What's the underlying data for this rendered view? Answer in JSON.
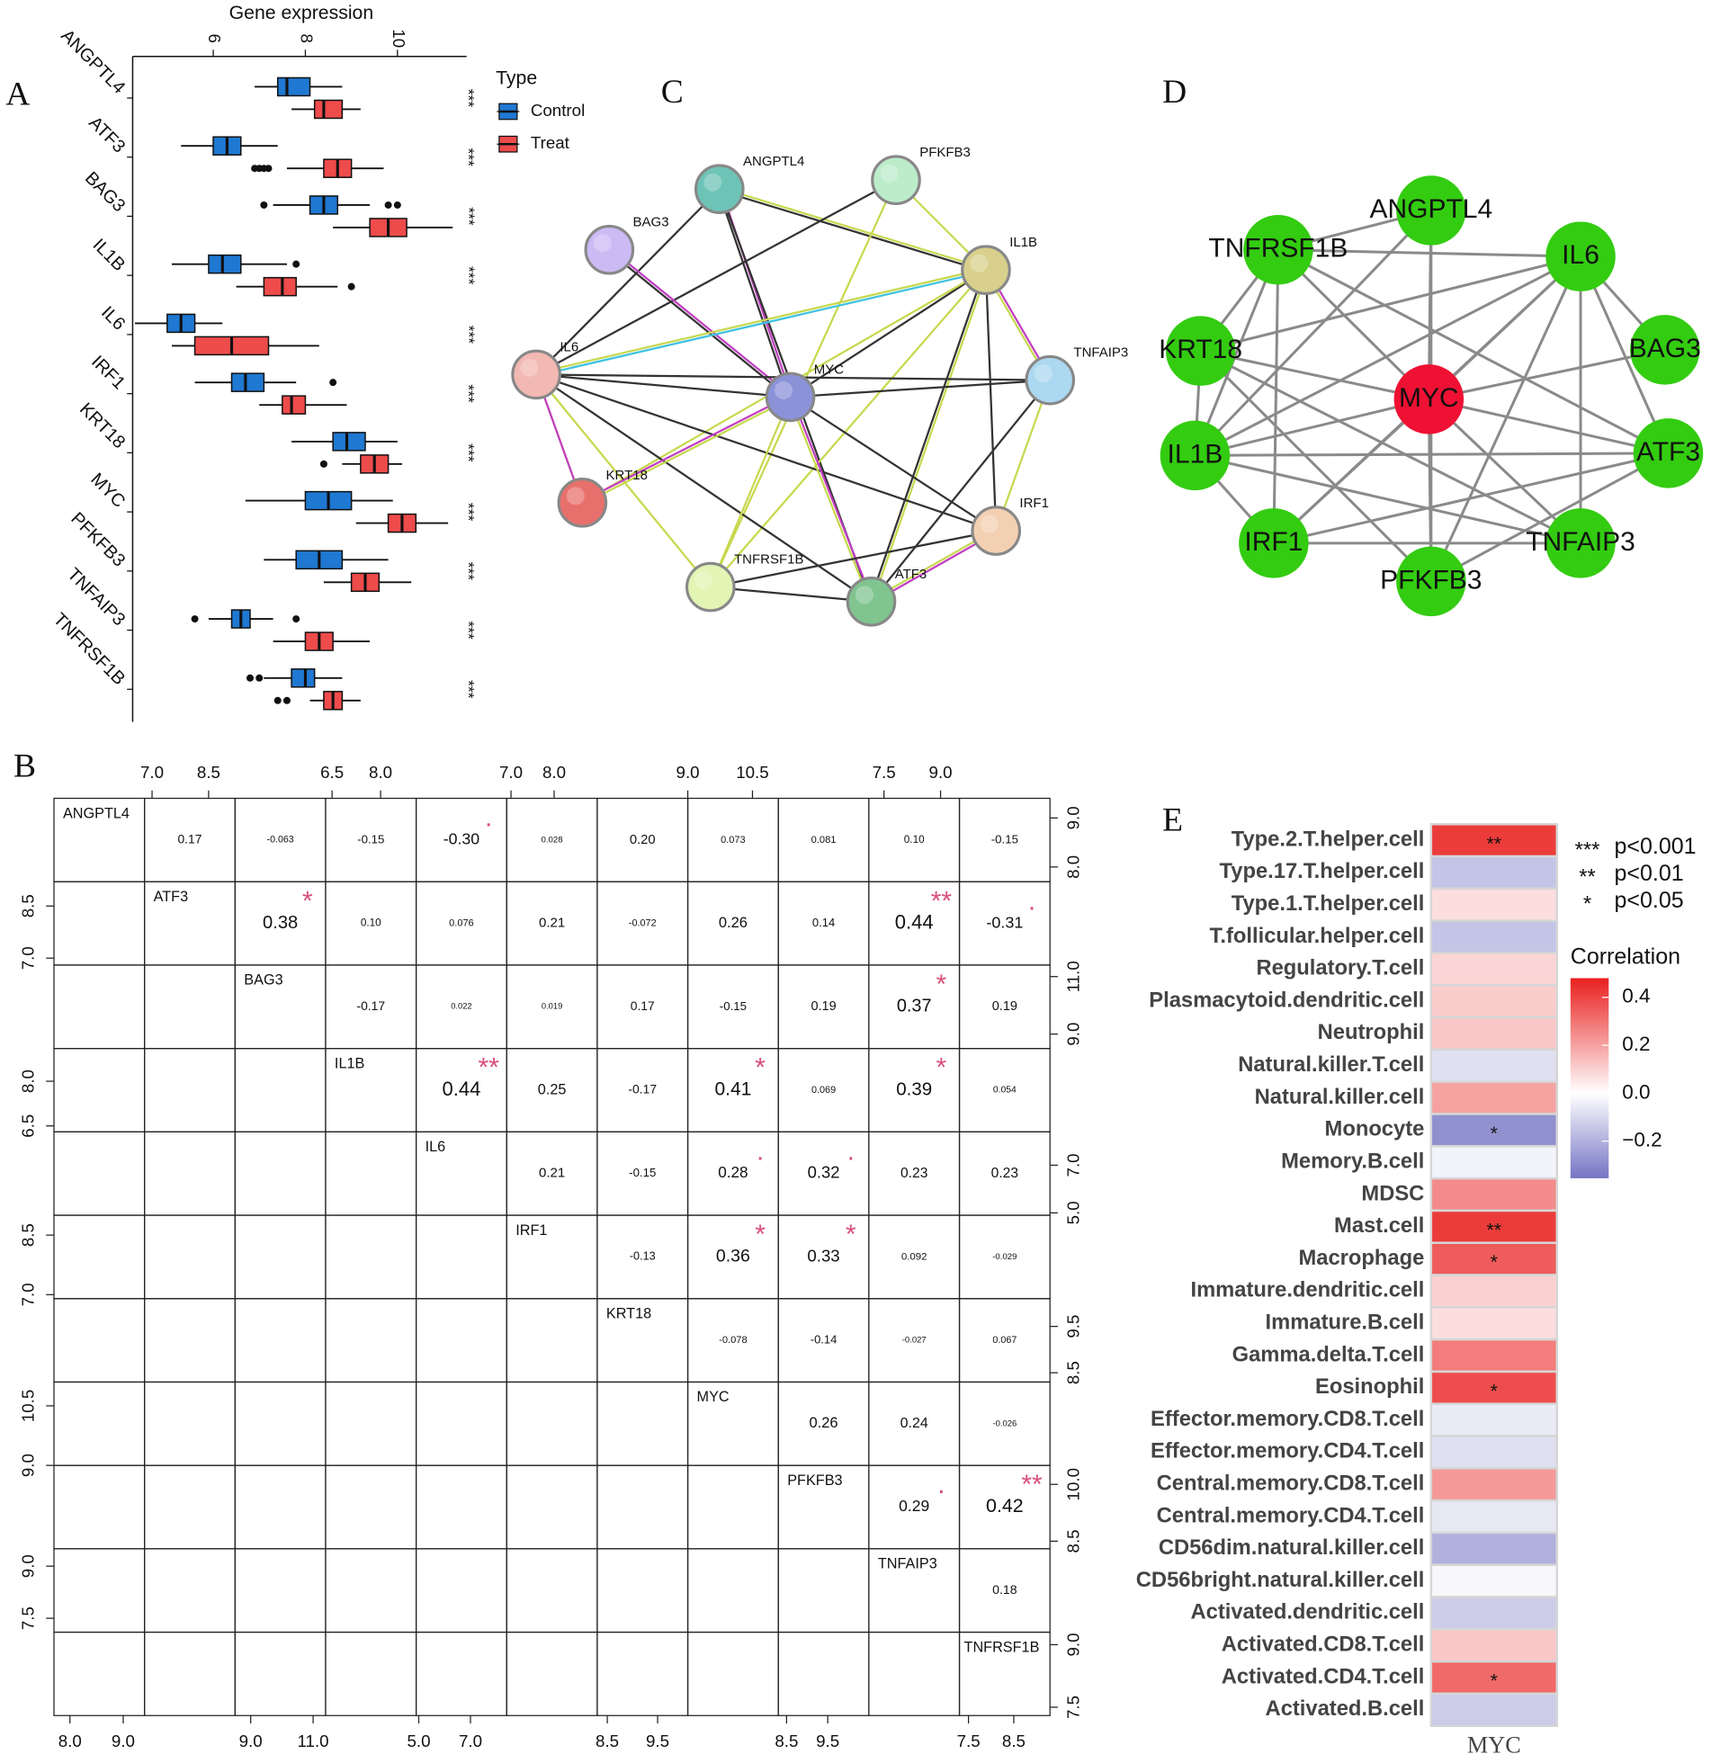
{
  "chart_data": [
    {
      "type": "box",
      "panel_label": "A",
      "title": "Gene expression",
      "categories": [
        "ANGPTL4",
        "ATF3",
        "BAG3",
        "IL1B",
        "IL6",
        "IRF1",
        "KRT18",
        "MYC",
        "PFKFB3",
        "TNFAIP3",
        "TNFRSF1B"
      ],
      "xlim": [
        4.25,
        11.5
      ],
      "xticks": [
        6,
        8,
        10
      ],
      "legend_title": "Type",
      "series": [
        {
          "name": "Control",
          "color": "#1f78d1",
          "q1": [
            7.4,
            6.0,
            8.1,
            5.9,
            5.0,
            6.4,
            8.6,
            8.0,
            7.8,
            6.4,
            7.7
          ],
          "median": [
            7.6,
            6.3,
            8.4,
            6.2,
            5.3,
            6.7,
            8.9,
            8.5,
            8.3,
            6.6,
            8.0
          ],
          "q3": [
            8.1,
            6.6,
            8.7,
            6.6,
            5.6,
            7.1,
            9.3,
            9.0,
            8.8,
            6.8,
            8.2
          ],
          "whisker_low": [
            6.9,
            5.3,
            7.3,
            5.1,
            4.3,
            5.6,
            7.7,
            6.7,
            7.1,
            5.9,
            7.1
          ],
          "whisker_high": [
            8.8,
            7.4,
            9.4,
            7.6,
            6.2,
            7.8,
            10.0,
            9.9,
            9.8,
            7.3,
            8.8
          ],
          "outliers": [
            [],
            [],
            [
              7.1,
              9.8,
              10.0
            ],
            [
              7.8
            ],
            [],
            [
              8.6
            ],
            [],
            [],
            [],
            [
              5.6,
              7.8
            ],
            [
              6.8,
              7.0
            ]
          ]
        },
        {
          "name": "Treat",
          "color": "#ee4b4b",
          "q1": [
            8.2,
            8.4,
            9.4,
            7.1,
            5.6,
            7.5,
            9.2,
            9.8,
            9.0,
            8.0,
            8.4
          ],
          "median": [
            8.4,
            8.7,
            9.8,
            7.5,
            6.4,
            7.7,
            9.5,
            10.1,
            9.3,
            8.3,
            8.6
          ],
          "q3": [
            8.8,
            9.0,
            10.2,
            7.8,
            7.2,
            8.0,
            9.8,
            10.4,
            9.6,
            8.6,
            8.8
          ],
          "whisker_low": [
            7.7,
            7.6,
            8.6,
            6.5,
            5.1,
            7.0,
            8.8,
            9.1,
            8.4,
            7.3,
            8.1
          ],
          "whisker_high": [
            9.2,
            9.7,
            11.2,
            8.7,
            8.3,
            8.9,
            10.1,
            11.1,
            10.3,
            9.4,
            9.2
          ],
          "outliers": [
            [],
            [
              6.9,
              7.0,
              7.1,
              7.2
            ],
            [],
            [
              9.0
            ],
            [],
            [],
            [
              8.4
            ],
            [],
            [],
            [],
            [
              7.4,
              7.6
            ]
          ]
        }
      ],
      "annotations": [
        "***",
        "***",
        "***",
        "***",
        "***",
        "***",
        "***",
        "***",
        "***",
        "***",
        "***"
      ]
    },
    {
      "type": "pairs",
      "panel_label": "B",
      "variables": [
        "ANGPTL4",
        "ATF3",
        "BAG3",
        "IL1B",
        "IL6",
        "IRF1",
        "KRT18",
        "MYC",
        "PFKFB3",
        "TNFAIP3",
        "TNFRSF1B"
      ],
      "ranges": [
        [
          7.7,
          9.4
        ],
        [
          6.8,
          9.2
        ],
        [
          8.5,
          11.4
        ],
        [
          6.3,
          9.1
        ],
        [
          4.9,
          8.4
        ],
        [
          6.9,
          9.0
        ],
        [
          8.3,
          10.1
        ],
        [
          9.0,
          11.1
        ],
        [
          8.3,
          10.5
        ],
        [
          7.1,
          9.5
        ],
        [
          7.3,
          9.3
        ]
      ],
      "col_ticks": [
        [
          {
            "value": 8,
            "label": "8.0"
          },
          {
            "value": 9,
            "label": "9.0"
          }
        ],
        [
          {
            "value": 7,
            "label": "7.0"
          },
          8.5
        ],
        [
          {
            "value": 9,
            "label": "9.0"
          },
          {
            "value": 11,
            "label": "11.0"
          }
        ],
        [
          6.5,
          {
            "value": 8,
            "label": "8.0"
          }
        ],
        [
          {
            "value": 5,
            "label": "5.0"
          },
          {
            "value": 7,
            "label": "7.0"
          }
        ],
        [
          {
            "value": 7,
            "label": "7.0"
          },
          {
            "value": 8,
            "label": "8.0"
          }
        ],
        [
          8.5,
          9.5
        ],
        [
          {
            "value": 9,
            "label": "9.0"
          },
          10.5
        ],
        [
          8.5,
          9.5
        ],
        [
          7.5,
          {
            "value": 9,
            "label": "9.0"
          }
        ],
        [
          7.5,
          8.5
        ]
      ],
      "row_ticks": [
        [
          {
            "value": 8,
            "label": "8.0"
          },
          {
            "value": 9,
            "label": "9.0"
          }
        ],
        [
          {
            "value": 7,
            "label": "7.0"
          },
          8.5
        ],
        [
          {
            "value": 9,
            "label": "9.0"
          },
          {
            "value": 11,
            "label": "11.0"
          }
        ],
        [
          6.5,
          {
            "value": 8,
            "label": "8.0"
          }
        ],
        [
          {
            "value": 5,
            "label": "5.0"
          },
          {
            "value": 7,
            "label": "7.0"
          }
        ],
        [
          {
            "value": 7,
            "label": "7.0"
          },
          8.5
        ],
        [
          8.5,
          9.5
        ],
        [
          {
            "value": 9,
            "label": "9.0"
          },
          10.5
        ],
        [
          8.5,
          {
            "value": 10,
            "label": "10.0"
          }
        ],
        [
          7.5,
          {
            "value": 9,
            "label": "9.0"
          }
        ],
        [
          7.5,
          {
            "value": 9,
            "label": "9.0"
          }
        ]
      ],
      "correlations": [
        [
          null,
          0.17,
          -0.063,
          -0.15,
          -0.3,
          0.028,
          0.2,
          0.073,
          0.081,
          0.1,
          -0.15
        ],
        [
          null,
          null,
          0.38,
          0.1,
          0.076,
          0.21,
          -0.072,
          0.26,
          0.14,
          0.44,
          -0.31
        ],
        [
          null,
          null,
          null,
          -0.17,
          0.022,
          0.019,
          0.17,
          -0.15,
          0.19,
          0.37,
          0.19
        ],
        [
          null,
          null,
          null,
          null,
          0.44,
          0.25,
          -0.17,
          0.41,
          0.069,
          0.39,
          0.054
        ],
        [
          null,
          null,
          null,
          null,
          null,
          0.21,
          -0.15,
          0.28,
          0.32,
          0.23,
          0.23
        ],
        [
          null,
          null,
          null,
          null,
          null,
          null,
          -0.13,
          0.36,
          0.33,
          0.092,
          -0.029
        ],
        [
          null,
          null,
          null,
          null,
          null,
          null,
          null,
          -0.078,
          -0.14,
          -0.027,
          0.067
        ],
        [
          null,
          null,
          null,
          null,
          null,
          null,
          null,
          null,
          0.26,
          0.24,
          -0.026
        ],
        [
          null,
          null,
          null,
          null,
          null,
          null,
          null,
          null,
          null,
          0.29,
          0.42
        ],
        [
          null,
          null,
          null,
          null,
          null,
          null,
          null,
          null,
          null,
          null,
          0.18
        ],
        [
          null,
          null,
          null,
          null,
          null,
          null,
          null,
          null,
          null,
          null,
          null
        ]
      ],
      "correlation_labels": [
        [
          null,
          "0.17",
          "-0.063",
          "-0.15",
          "-0.30",
          "0.028",
          "0.20",
          "0.073",
          "0.081",
          "0.10",
          "-0.15"
        ],
        [
          null,
          null,
          "0.38",
          "0.10",
          "0.076",
          "0.21",
          "-0.072",
          "0.26",
          "0.14",
          "0.44",
          "-0.31"
        ],
        [
          null,
          null,
          null,
          "-0.17",
          "0.022",
          "0.019",
          "0.17",
          "-0.15",
          "0.19",
          "0.37",
          "0.19"
        ],
        [
          null,
          null,
          null,
          null,
          "0.44",
          "0.25",
          "-0.17",
          "0.41",
          "0.069",
          "0.39",
          "0.054"
        ],
        [
          null,
          null,
          null,
          null,
          null,
          "0.21",
          "-0.15",
          "0.28",
          "0.32",
          "0.23",
          "0.23"
        ],
        [
          null,
          null,
          null,
          null,
          null,
          null,
          "-0.13",
          "0.36",
          "0.33",
          "0.092",
          "-0.029"
        ],
        [
          null,
          null,
          null,
          null,
          null,
          null,
          null,
          "-0.078",
          "-0.14",
          "-0.027",
          "0.067"
        ],
        [
          null,
          null,
          null,
          null,
          null,
          null,
          null,
          null,
          "0.26",
          "0.24",
          "-0.026"
        ],
        [
          null,
          null,
          null,
          null,
          null,
          null,
          null,
          null,
          null,
          "0.29",
          "0.42"
        ],
        [
          null,
          null,
          null,
          null,
          null,
          null,
          null,
          null,
          null,
          null,
          "0.18"
        ],
        [
          null,
          null,
          null,
          null,
          null,
          null,
          null,
          null,
          null,
          null,
          null
        ]
      ],
      "significance": [
        [
          null,
          null,
          null,
          null,
          ".",
          null,
          null,
          null,
          null,
          null,
          null
        ],
        [
          null,
          null,
          "*",
          null,
          null,
          null,
          null,
          null,
          null,
          "**",
          "."
        ],
        [
          null,
          null,
          null,
          null,
          null,
          null,
          null,
          null,
          null,
          "*",
          null
        ],
        [
          null,
          null,
          null,
          null,
          "**",
          null,
          null,
          "*",
          null,
          "*",
          null
        ],
        [
          null,
          null,
          null,
          null,
          null,
          null,
          null,
          ".",
          ".",
          null,
          null
        ],
        [
          null,
          null,
          null,
          null,
          null,
          null,
          null,
          "*",
          "*",
          null,
          null
        ],
        [
          null,
          null,
          null,
          null,
          null,
          null,
          null,
          null,
          null,
          null,
          null
        ],
        [
          null,
          null,
          null,
          null,
          null,
          null,
          null,
          null,
          null,
          null,
          null
        ],
        [
          null,
          null,
          null,
          null,
          null,
          null,
          null,
          null,
          null,
          ".",
          "**"
        ],
        [
          null,
          null,
          null,
          null,
          null,
          null,
          null,
          null,
          null,
          null,
          null
        ],
        [
          null,
          null,
          null,
          null,
          null,
          null,
          null,
          null,
          null,
          null,
          null
        ]
      ],
      "significance_color": "#d9507a"
    },
    {
      "type": "heatmap",
      "panel_label": "E",
      "xlabel": "MYC",
      "categories": [
        "Type.2.T.helper.cell",
        "Type.17.T.helper.cell",
        "Type.1.T.helper.cell",
        "T.follicular.helper.cell",
        "Regulatory.T.cell",
        "Plasmacytoid.dendritic.cell",
        "Neutrophil",
        "Natural.killer.T.cell",
        "Natural.killer.cell",
        "Monocyte",
        "Memory.B.cell",
        "MDSC",
        "Mast.cell",
        "Macrophage",
        "Immature.dendritic.cell",
        "Immature.B.cell",
        "Gamma.delta.T.cell",
        "Eosinophil",
        "Effector.memory.CD8.T.cell",
        "Effector.memory.CD4.T.cell",
        "Central.memory.CD8.T.cell",
        "Central.memory.CD4.T.cell",
        "CD56dim.natural.killer.cell",
        "CD56bright.natural.killer.cell",
        "Activated.dendritic.cell",
        "Activated.CD8.T.cell",
        "Activated.CD4.T.cell",
        "Activated.B.cell"
      ],
      "values": [
        0.42,
        -0.15,
        0.07,
        -0.15,
        0.09,
        0.11,
        0.12,
        -0.08,
        0.2,
        -0.28,
        -0.03,
        0.25,
        0.42,
        0.35,
        0.1,
        0.07,
        0.28,
        0.38,
        -0.05,
        -0.08,
        0.22,
        -0.06,
        -0.2,
        -0.02,
        -0.13,
        0.12,
        0.32,
        -0.13
      ],
      "stars": [
        "**",
        null,
        null,
        null,
        null,
        null,
        null,
        null,
        null,
        "*",
        null,
        null,
        "**",
        "*",
        null,
        null,
        null,
        "*",
        null,
        null,
        null,
        null,
        null,
        null,
        null,
        null,
        "*",
        null
      ],
      "colorbar_title": "Correlation",
      "clim": [
        -0.355,
        0.48
      ],
      "cticks": [
        0.4,
        0.2,
        {
          "value": 0,
          "label": "0.0"
        },
        {
          "value": -0.2,
          "label": "−0.2"
        }
      ],
      "colors": {
        "low": "#7474c4",
        "mid": "#ffffff",
        "high": "#e8201e"
      },
      "legend": [
        {
          "symbol": "***",
          "text": "p<0.001"
        },
        {
          "symbol": "**",
          "text": "p<0.01"
        },
        {
          "symbol": "*",
          "text": "p<0.05"
        }
      ]
    }
  ],
  "network_c": {
    "panel_label": "C",
    "nodes": [
      {
        "label": "ANGPTL4",
        "color": "#6ec3b7"
      },
      {
        "label": "PFKFB3",
        "color": "#bdeccb"
      },
      {
        "label": "BAG3",
        "color": "#cbbaf4"
      },
      {
        "label": "IL1B",
        "color": "#d8d08c"
      },
      {
        "label": "IL6",
        "color": "#f2b8b2"
      },
      {
        "label": "MYC",
        "color": "#8c92d8"
      },
      {
        "label": "TNFAIP3",
        "color": "#acd9f1"
      },
      {
        "label": "KRT18",
        "color": "#e8706c"
      },
      {
        "label": "IRF1",
        "color": "#f4d0b2"
      },
      {
        "label": "TNFRSF1B",
        "color": "#e2f5b4"
      },
      {
        "label": "ATF3",
        "color": "#80c590"
      }
    ]
  },
  "network_d": {
    "panel_label": "D",
    "nodes": [
      {
        "label": "ANGPTL4",
        "color": "#33cc11"
      },
      {
        "label": "IL6",
        "color": "#33cc11"
      },
      {
        "label": "BAG3",
        "color": "#33cc11"
      },
      {
        "label": "ATF3",
        "color": "#33cc11"
      },
      {
        "label": "TNFAIP3",
        "color": "#33cc11"
      },
      {
        "label": "PFKFB3",
        "color": "#33cc11"
      },
      {
        "label": "IRF1",
        "color": "#33cc11"
      },
      {
        "label": "IL1B",
        "color": "#33cc11"
      },
      {
        "label": "KRT18",
        "color": "#33cc11"
      },
      {
        "label": "TNFRSF1B",
        "color": "#33cc11"
      },
      {
        "label": "MYC",
        "color": "#ee1133"
      }
    ]
  }
}
